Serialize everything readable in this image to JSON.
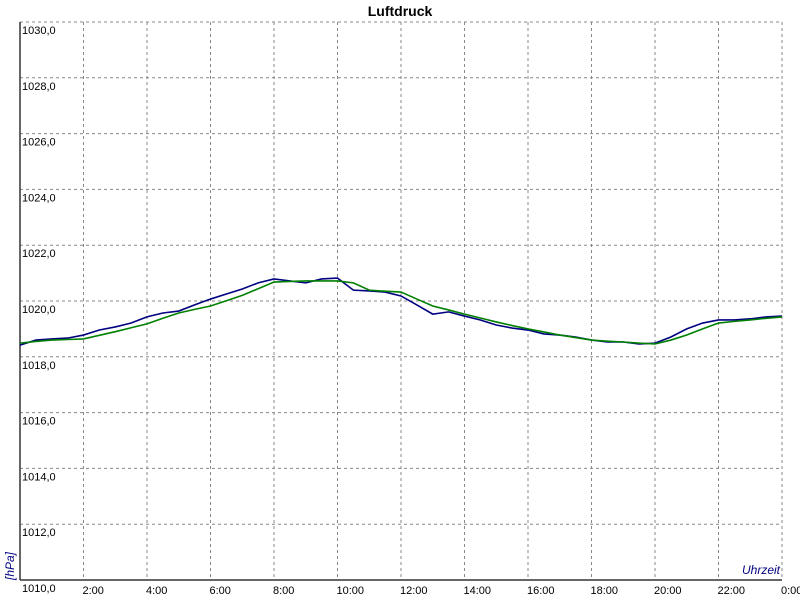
{
  "chart_data": {
    "type": "line",
    "title": "Luftdruck",
    "ylabel": "[hPa]",
    "xlabel": "Uhrzeit",
    "xlim": [
      0,
      24
    ],
    "ylim": [
      1010,
      1030
    ],
    "grid": true,
    "xticks": [
      {
        "value": 2,
        "label": "2:00"
      },
      {
        "value": 4,
        "label": "4:00"
      },
      {
        "value": 6,
        "label": "6:00"
      },
      {
        "value": 8,
        "label": "8:00"
      },
      {
        "value": 10,
        "label": "10:00"
      },
      {
        "value": 12,
        "label": "12:00"
      },
      {
        "value": 14,
        "label": "14:00"
      },
      {
        "value": 16,
        "label": "16:00"
      },
      {
        "value": 18,
        "label": "18:00"
      },
      {
        "value": 20,
        "label": "20:00"
      },
      {
        "value": 22,
        "label": "22:00"
      },
      {
        "value": 24,
        "label": "0:00"
      }
    ],
    "yticks": [
      {
        "value": 1010,
        "label": "1010,0"
      },
      {
        "value": 1012,
        "label": "1012,0"
      },
      {
        "value": 1014,
        "label": "1014,0"
      },
      {
        "value": 1016,
        "label": "1016,0"
      },
      {
        "value": 1018,
        "label": "1018,0"
      },
      {
        "value": 1020,
        "label": "1020,0"
      },
      {
        "value": 1022,
        "label": "1022,0"
      },
      {
        "value": 1024,
        "label": "1024,0"
      },
      {
        "value": 1026,
        "label": "1026,0"
      },
      {
        "value": 1028,
        "label": "1028,0"
      },
      {
        "value": 1030,
        "label": "1030,0"
      }
    ],
    "x": [
      0,
      0.5,
      1,
      1.5,
      2,
      2.5,
      3,
      3.5,
      4,
      4.5,
      5,
      5.5,
      6,
      6.5,
      7,
      7.5,
      8,
      8.5,
      9,
      9.5,
      10,
      10.5,
      11,
      11.5,
      12,
      12.5,
      13,
      13.5,
      14,
      14.5,
      15,
      15.5,
      16,
      16.5,
      17,
      17.5,
      18,
      18.5,
      19,
      19.5,
      20,
      20.5,
      21,
      21.5,
      22,
      22.5,
      23,
      23.5,
      24
    ],
    "series": [
      {
        "color": "#000080",
        "values": [
          1018.42,
          1018.6,
          1018.64,
          1018.67,
          1018.78,
          1018.96,
          1019.07,
          1019.21,
          1019.43,
          1019.57,
          1019.64,
          1019.86,
          1020.07,
          1020.25,
          1020.43,
          1020.65,
          1020.79,
          1020.72,
          1020.65,
          1020.79,
          1020.82,
          1020.39,
          1020.36,
          1020.32,
          1020.18,
          1019.86,
          1019.53,
          1019.61,
          1019.46,
          1019.32,
          1019.14,
          1019.03,
          1018.96,
          1018.82,
          1018.78,
          1018.71,
          1018.6,
          1018.53,
          1018.53,
          1018.46,
          1018.49,
          1018.71,
          1019.0,
          1019.21,
          1019.32,
          1019.32,
          1019.36,
          1019.43,
          1019.46
        ]
      },
      {
        "color": "#008000",
        "values": [
          1018.49,
          1018.55,
          1018.6,
          1018.62,
          1018.64,
          1018.77,
          1018.9,
          1019.04,
          1019.18,
          1019.38,
          1019.57,
          1019.7,
          1019.82,
          1020.01,
          1020.2,
          1020.44,
          1020.68,
          1020.7,
          1020.72,
          1020.72,
          1020.72,
          1020.65,
          1020.39,
          1020.35,
          1020.32,
          1020.07,
          1019.82,
          1019.68,
          1019.53,
          1019.39,
          1019.25,
          1019.12,
          1019.0,
          1018.89,
          1018.78,
          1018.69,
          1018.6,
          1018.56,
          1018.53,
          1018.49,
          1018.46,
          1018.6,
          1018.78,
          1019.0,
          1019.21,
          1019.27,
          1019.32,
          1019.38,
          1019.43
        ]
      }
    ]
  }
}
